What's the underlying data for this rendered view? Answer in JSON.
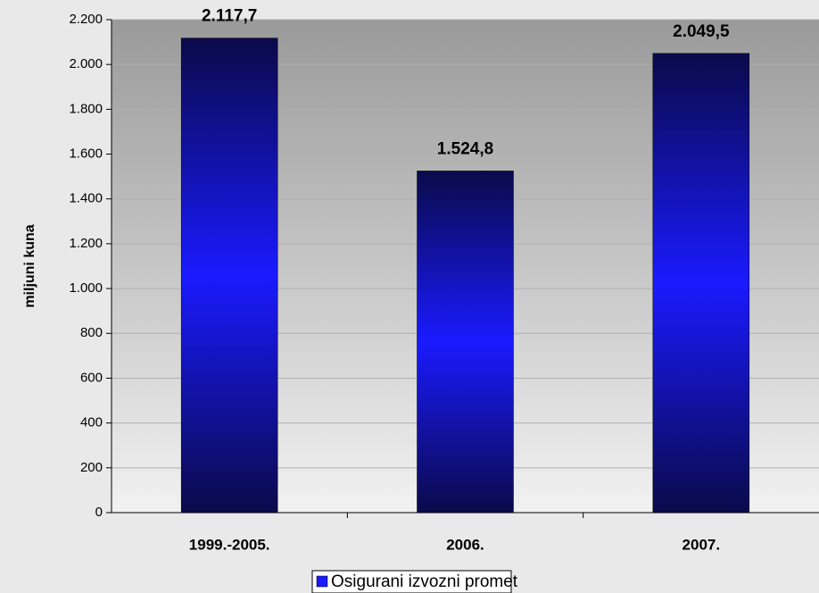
{
  "chart_data": {
    "type": "bar",
    "y_label": "miljuni kuna",
    "categories": [
      "1999.-2005.",
      "2006.",
      "2007."
    ],
    "series": [
      {
        "name": "Osigurani izvozni promet",
        "color": "#1a1aff",
        "values": [
          2117.7,
          1524.8,
          2049.5
        ],
        "value_labels": [
          "2.117,7",
          "1.524,8",
          "2.049,5"
        ]
      }
    ],
    "ylim": [
      0,
      2200
    ],
    "yticks": [
      0,
      200,
      400,
      600,
      800,
      {
        "value": 1000,
        "label": "1.000"
      },
      {
        "value": 1200,
        "label": "1.200"
      },
      {
        "value": 1400,
        "label": "1.400"
      },
      {
        "value": 1600,
        "label": "1.600"
      },
      {
        "value": 1800,
        "label": "1.800"
      },
      {
        "value": 2000,
        "label": "2.000"
      },
      {
        "value": 2200,
        "label": "2.200"
      }
    ],
    "grid": true,
    "legend": "bottom"
  }
}
